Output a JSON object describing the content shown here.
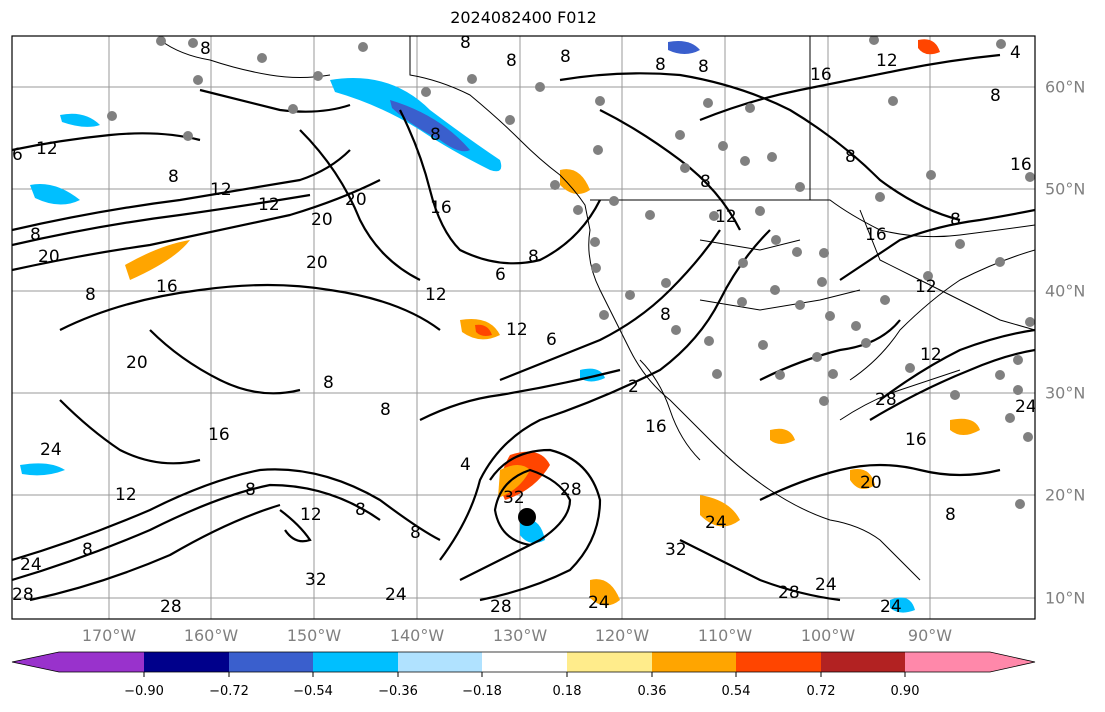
{
  "title": "2024082400 F012",
  "lon_labels": [
    "170°W",
    "160°W",
    "150°W",
    "140°W",
    "130°W",
    "120°W",
    "110°W",
    "100°W",
    "90°W"
  ],
  "lat_labels": [
    "60°N",
    "50°N",
    "40°N",
    "30°N",
    "20°N",
    "10°N"
  ],
  "contour_labels": [
    "8",
    "12",
    "16",
    "20",
    "24",
    "28",
    "32",
    "6",
    "4",
    "2"
  ],
  "colorbar": {
    "ticks": [
      "−0.90",
      "−0.72",
      "−0.54",
      "−0.36",
      "−0.18",
      "0.18",
      "0.36",
      "0.54",
      "0.72",
      "0.90"
    ],
    "colors": [
      "#9932cc",
      "#00008b",
      "#3a5fcd",
      "#00bfff",
      "#b0e2ff",
      "#ffffff",
      "#ffec8b",
      "#ffa500",
      "#ff4500",
      "#b22222",
      "#ff88aa"
    ]
  }
}
